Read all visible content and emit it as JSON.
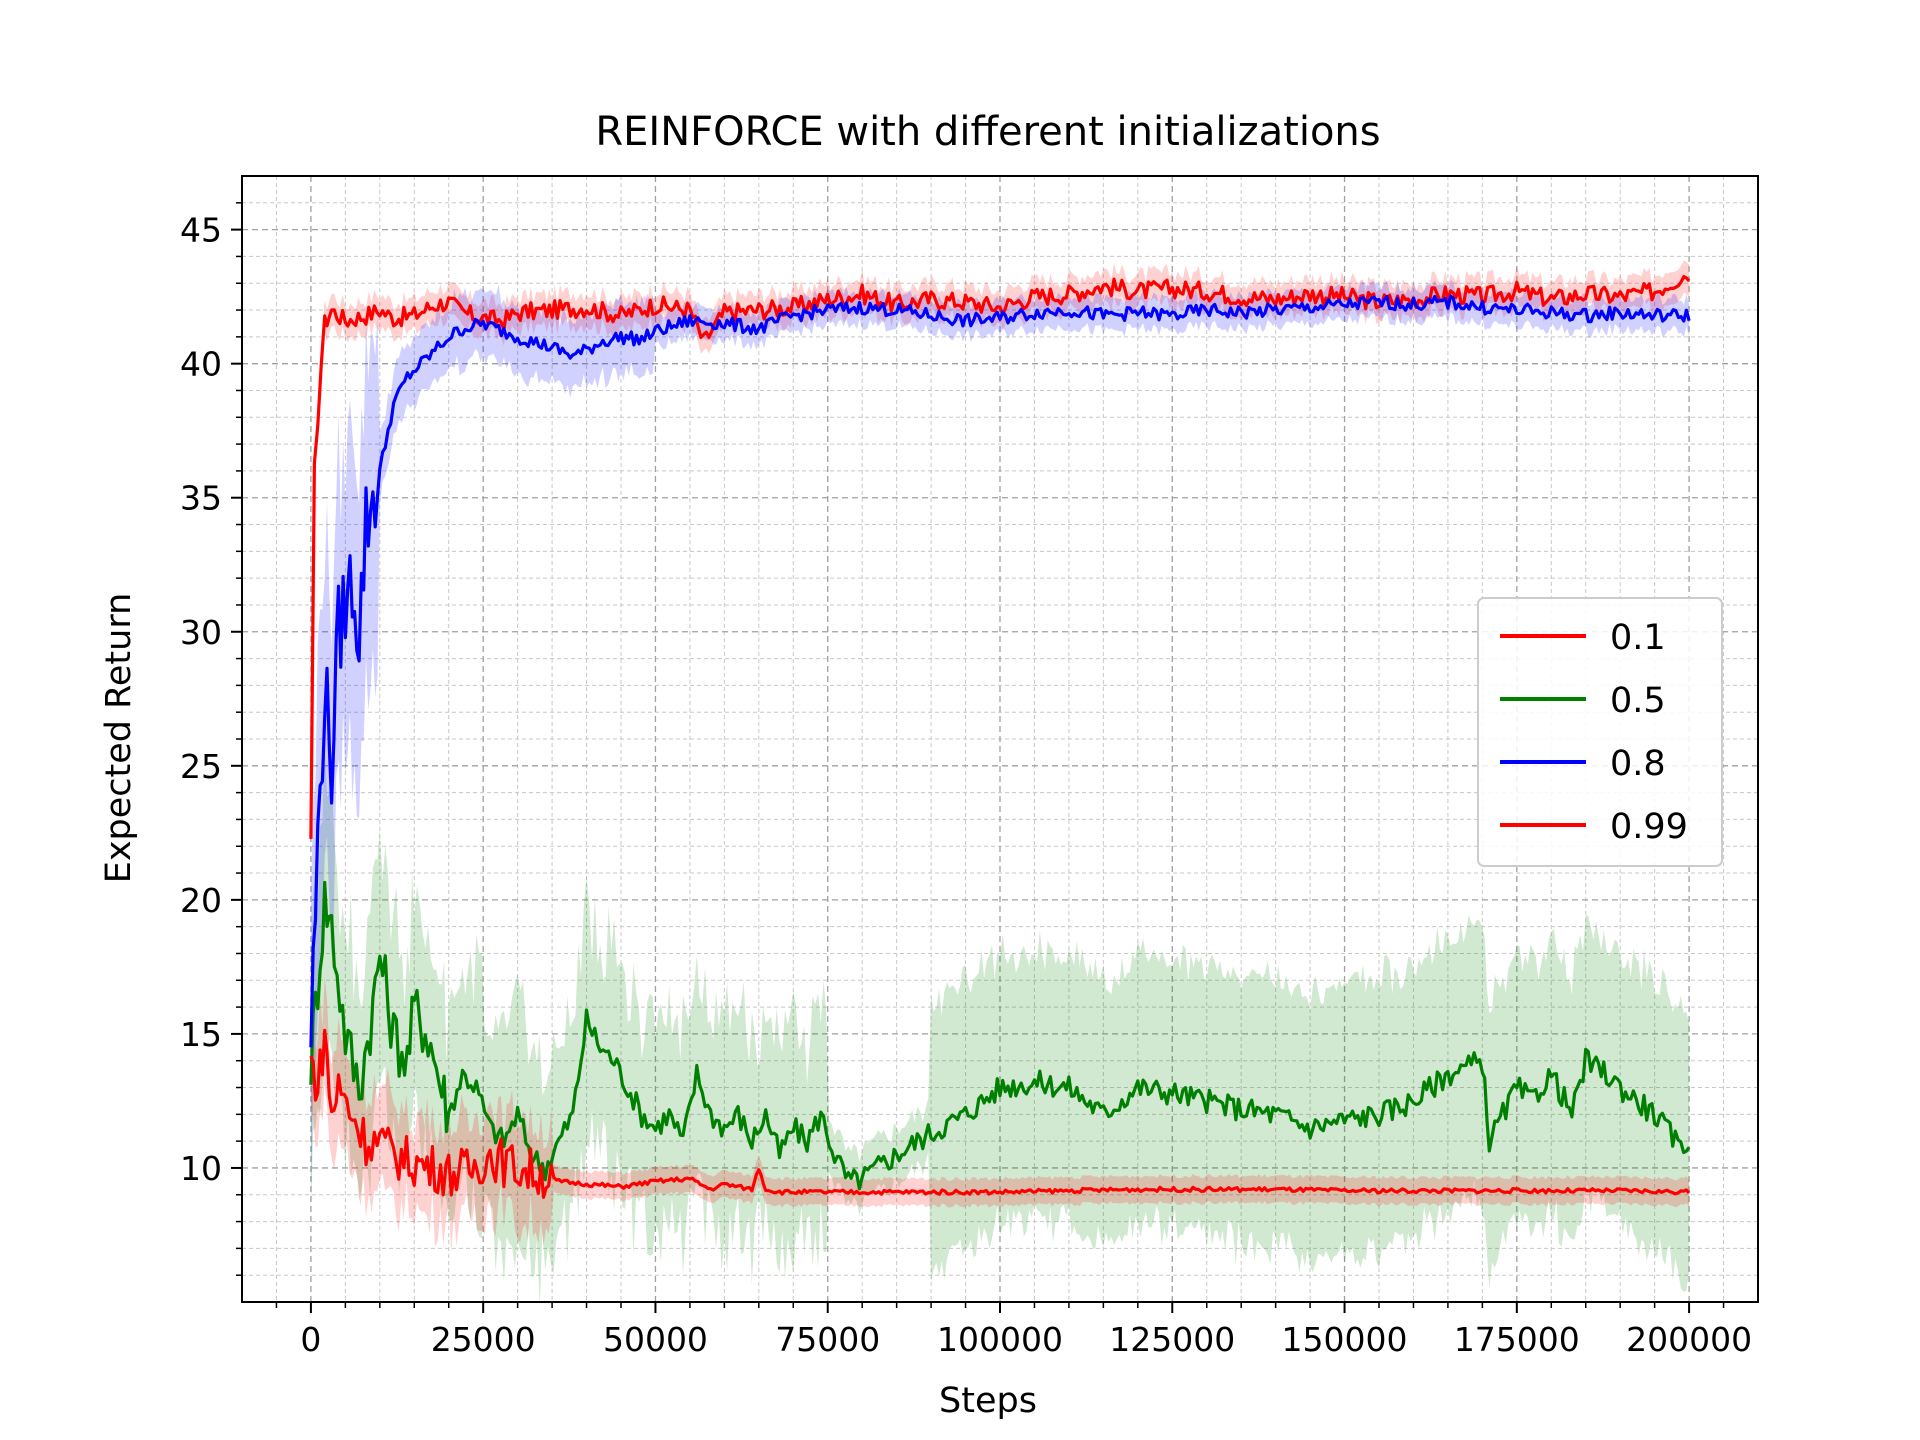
{
  "chart_data": {
    "type": "line",
    "title": "REINFORCE with different initializations",
    "xlabel": "Steps",
    "ylabel": "Expected Return",
    "xlim": [
      -10000,
      210000
    ],
    "ylim": [
      5,
      47
    ],
    "xticks": [
      0,
      25000,
      50000,
      75000,
      100000,
      125000,
      150000,
      175000,
      200000
    ],
    "xtick_labels": [
      "0",
      "25000",
      "50000",
      "75000",
      "100000",
      "125000",
      "150000",
      "175000",
      "200000"
    ],
    "yticks": [
      10,
      15,
      20,
      25,
      30,
      35,
      40,
      45
    ],
    "ytick_labels": [
      "10",
      "15",
      "20",
      "25",
      "30",
      "35",
      "40",
      "45"
    ],
    "grid": true,
    "minor_grid": true,
    "legend_position": "center-right",
    "series": [
      {
        "name": "0.1",
        "color": "#ff0000",
        "x": [
          0,
          500,
          1000,
          1500,
          2000,
          3000,
          5000,
          8000,
          10000,
          12000,
          15000,
          18000,
          20000,
          22000,
          25000,
          28000,
          30000,
          35000,
          40000,
          45000,
          50000,
          55000,
          57000,
          60000,
          65000,
          70000,
          75000,
          80000,
          85000,
          90000,
          95000,
          100000,
          105000,
          110000,
          115000,
          120000,
          125000,
          130000,
          135000,
          140000,
          145000,
          150000,
          155000,
          160000,
          165000,
          170000,
          175000,
          180000,
          185000,
          190000,
          195000,
          200000
        ],
        "y": [
          22,
          36,
          38,
          40,
          41.5,
          42,
          41.6,
          41.8,
          42,
          41.7,
          41.8,
          42.2,
          42.3,
          41.9,
          41.7,
          41.6,
          41.9,
          42,
          42.1,
          41.8,
          42.2,
          42,
          40.8,
          41.9,
          42,
          42.1,
          42.4,
          42.6,
          42.2,
          42.4,
          42.3,
          42.1,
          42.5,
          42.6,
          42.9,
          42.7,
          42.8,
          42.7,
          42.5,
          42.4,
          42.6,
          42.5,
          42.3,
          42.4,
          42.6,
          42.5,
          42.7,
          42.4,
          42.6,
          42.5,
          42.7,
          43.4
        ]
      },
      {
        "name": "0.5",
        "color": "#008000",
        "x": [
          0,
          1000,
          2000,
          3000,
          5000,
          7000,
          9000,
          10000,
          12000,
          14000,
          15000,
          17000,
          19000,
          20000,
          22000,
          24000,
          26000,
          28000,
          30000,
          32000,
          34000,
          36000,
          38000,
          40000,
          42000,
          44000,
          46000,
          48000,
          50000,
          52000,
          54000,
          56000,
          58000,
          60000,
          62000,
          64000,
          66000,
          68000,
          70000,
          72000,
          74000,
          76000,
          78000,
          80000,
          82000,
          85000,
          88000,
          90000,
          95000,
          100000,
          105000,
          110000,
          115000,
          120000,
          125000,
          130000,
          135000,
          140000,
          145000,
          150000,
          155000,
          160000,
          165000,
          168000,
          170000,
          171000,
          173000,
          175000,
          177000,
          180000,
          183000,
          185000,
          188000,
          190000,
          195000,
          198000,
          200000
        ],
        "y": [
          14,
          17,
          20,
          19,
          15,
          13,
          16,
          18,
          15,
          14,
          16,
          15,
          13,
          12,
          13.5,
          13,
          11.5,
          11,
          12,
          10.5,
          10,
          11,
          12,
          15.5,
          14.5,
          14,
          13,
          12,
          11.5,
          12,
          11,
          13.5,
          12,
          11.5,
          12,
          11,
          12,
          10.5,
          11.5,
          11,
          12,
          10.5,
          9.5,
          9.6,
          10,
          10.5,
          11,
          11.3,
          12,
          13,
          13.2,
          13,
          12,
          13,
          12.8,
          12.5,
          12.2,
          12,
          11.5,
          11.8,
          12,
          12.5,
          13.5,
          13.8,
          14,
          11,
          12,
          13,
          12.5,
          13.5,
          12,
          14,
          13.5,
          13,
          12,
          11,
          10.9
        ]
      },
      {
        "name": "0.8",
        "color": "#0000ff",
        "x": [
          0,
          1000,
          2000,
          3000,
          4000,
          5000,
          6000,
          7000,
          8000,
          9000,
          10000,
          12000,
          14000,
          16000,
          18000,
          20000,
          22000,
          25000,
          28000,
          30000,
          35000,
          38000,
          40000,
          42000,
          45000,
          48000,
          50000,
          55000,
          60000,
          65000,
          70000,
          75000,
          80000,
          85000,
          90000,
          95000,
          100000,
          105000,
          110000,
          115000,
          120000,
          125000,
          130000,
          135000,
          140000,
          145000,
          150000,
          155000,
          160000,
          165000,
          170000,
          175000,
          180000,
          185000,
          190000,
          195000,
          200000
        ],
        "y": [
          15,
          22,
          28,
          25,
          30,
          31,
          32,
          30,
          34,
          35,
          36,
          38.5,
          39.5,
          40,
          40.5,
          41,
          41.3,
          41.5,
          41.2,
          41,
          40.6,
          40.3,
          40.5,
          40.8,
          41,
          40.9,
          41.2,
          41.6,
          41.5,
          41.3,
          41.8,
          42,
          42.1,
          42,
          41.8,
          41.6,
          41.7,
          41.9,
          42,
          41.8,
          41.9,
          41.8,
          42,
          41.9,
          42,
          42.1,
          42.2,
          42.3,
          42.2,
          42.3,
          42.1,
          42,
          41.9,
          41.8,
          41.9,
          41.8,
          41.8
        ]
      },
      {
        "name": "0.99",
        "color": "#ff0000",
        "x": [
          0,
          1000,
          2000,
          3000,
          4000,
          6000,
          8000,
          10000,
          12000,
          15000,
          18000,
          20000,
          23000,
          26000,
          28000,
          30000,
          33000,
          36000,
          40000,
          45000,
          50000,
          55000,
          58000,
          60000,
          62000,
          64000,
          65000,
          66000,
          68000,
          70000,
          80000,
          90000,
          100000,
          110000,
          120000,
          130000,
          140000,
          150000,
          160000,
          170000,
          180000,
          190000,
          200000
        ],
        "y": [
          14,
          13,
          15,
          12,
          13,
          12,
          11,
          11,
          10.5,
          10.2,
          10,
          9.8,
          9.9,
          10.5,
          10.2,
          10,
          9.8,
          9.5,
          9.4,
          9.3,
          9.5,
          9.6,
          9.2,
          9.4,
          9.3,
          9.2,
          10,
          9.2,
          9.1,
          9.1,
          9.1,
          9.1,
          9.1,
          9.15,
          9.2,
          9.2,
          9.2,
          9.15,
          9.15,
          9.15,
          9.15,
          9.15,
          9.1
        ]
      }
    ]
  }
}
